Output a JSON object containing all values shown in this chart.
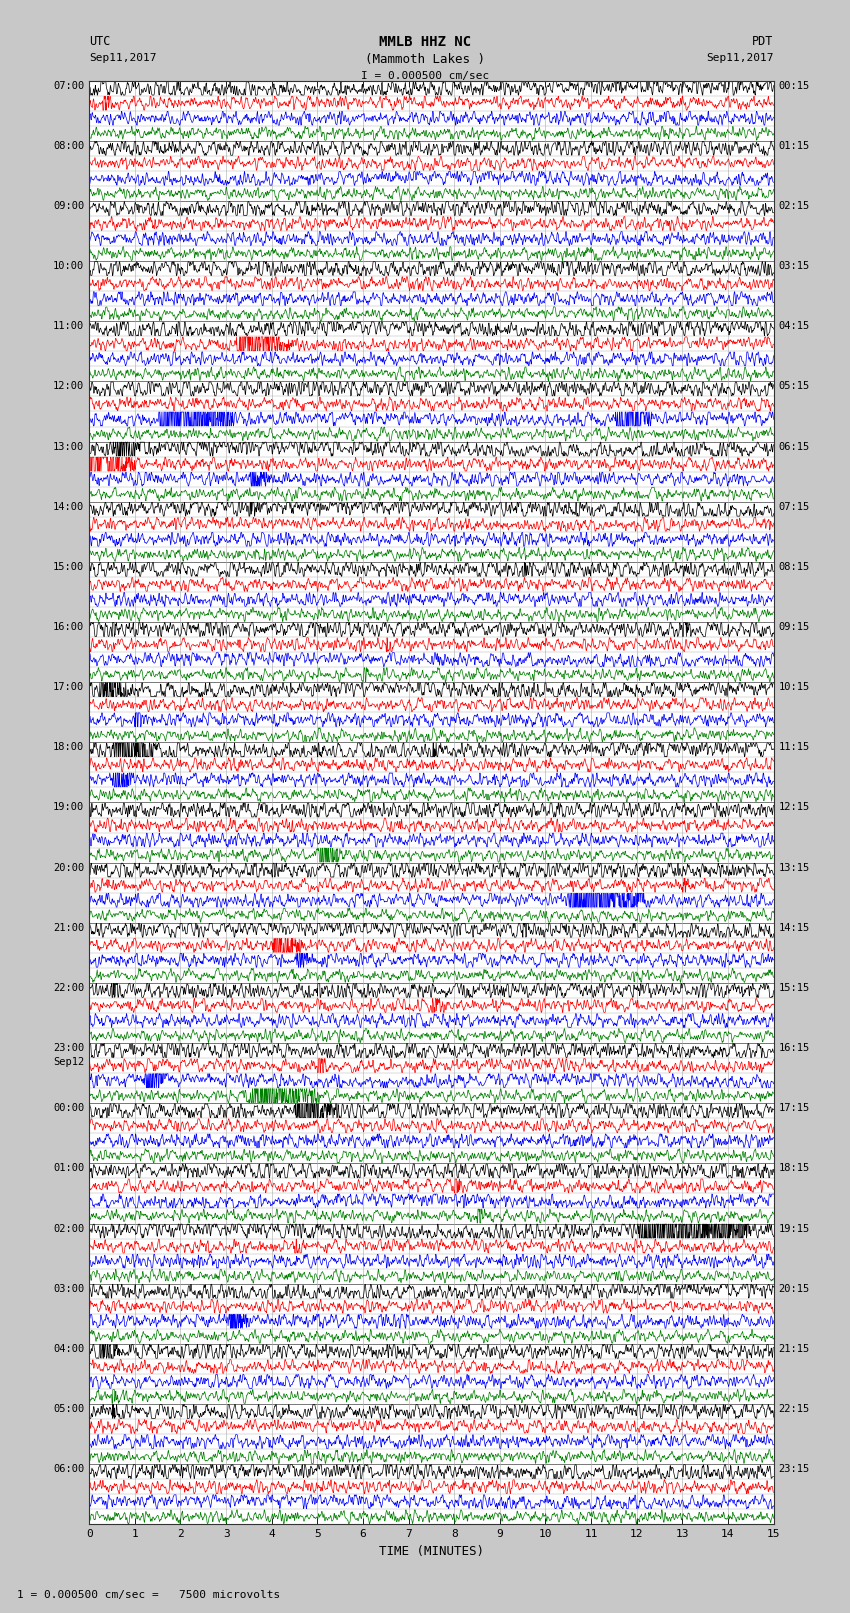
{
  "title_line1": "MMLB HHZ NC",
  "title_line2": "(Mammoth Lakes )",
  "title_line3": "I = 0.000500 cm/sec",
  "label_left_top": "UTC",
  "label_left_date": "Sep11,2017",
  "label_right_top": "PDT",
  "label_right_date": "Sep11,2017",
  "xlabel": "TIME (MINUTES)",
  "footnote": "1 = 0.000500 cm/sec =   7500 microvolts",
  "xlim": [
    0,
    15
  ],
  "xticks": [
    0,
    1,
    2,
    3,
    4,
    5,
    6,
    7,
    8,
    9,
    10,
    11,
    12,
    13,
    14,
    15
  ],
  "bg_color": "#c8c8c8",
  "plot_bg": "#ffffff",
  "grid_color": "#aaaaaa",
  "grid_major_color": "#777777",
  "n_points": 1800,
  "n_total": 96,
  "seed": 12345
}
